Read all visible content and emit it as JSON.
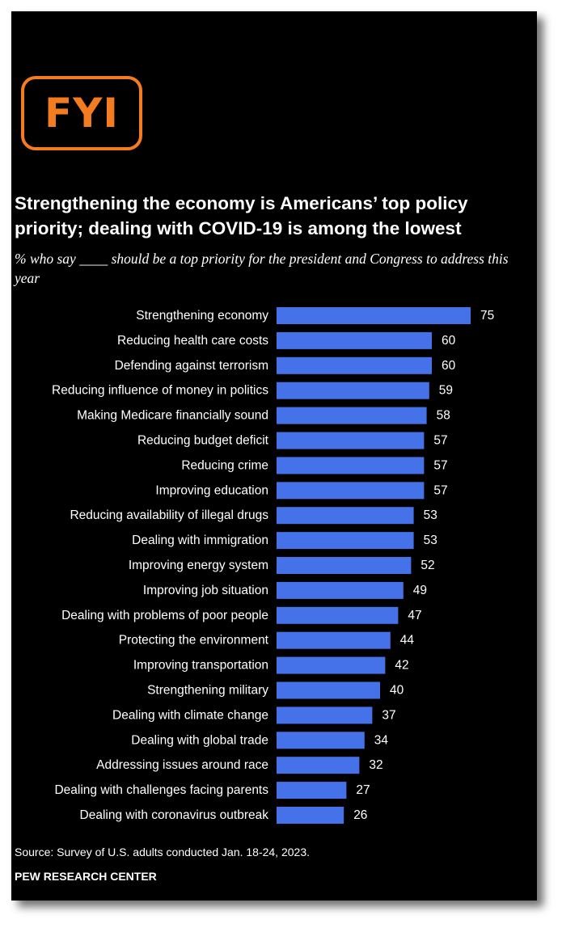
{
  "logo": {
    "text": "FYI",
    "color": "#f47c20"
  },
  "title": "Strengthening the economy is Americans’ top policy priority; dealing with COVID-19 is among the lowest",
  "subtitle": "% who say ____ should be a top priority for the president and Congress to address this year",
  "chart_data": {
    "type": "bar",
    "orientation": "horizontal",
    "bar_color": "#4572e8",
    "categories": [
      "Strengthening economy",
      "Reducing health care costs",
      "Defending against terrorism",
      "Reducing influence of money in politics",
      "Making Medicare financially sound",
      "Reducing budget deficit",
      "Reducing crime",
      "Improving education",
      "Reducing availability of illegal drugs",
      "Dealing with immigration",
      "Improving energy system",
      "Improving job situation",
      "Dealing with problems of poor people",
      "Protecting the environment",
      "Improving transportation",
      "Strengthening military",
      "Dealing with climate change",
      "Dealing with global trade",
      "Addressing issues around race",
      "Dealing with challenges facing parents",
      "Dealing with coronavirus outbreak"
    ],
    "values": [
      75,
      60,
      60,
      59,
      58,
      57,
      57,
      57,
      53,
      53,
      52,
      49,
      47,
      44,
      42,
      40,
      37,
      34,
      32,
      27,
      26
    ],
    "xlim": [
      0,
      100
    ],
    "grid": false,
    "data_labels": true
  },
  "source": "Source: Survey of U.S. adults conducted Jan. 18-24, 2023.",
  "brand": "PEW RESEARCH CENTER"
}
